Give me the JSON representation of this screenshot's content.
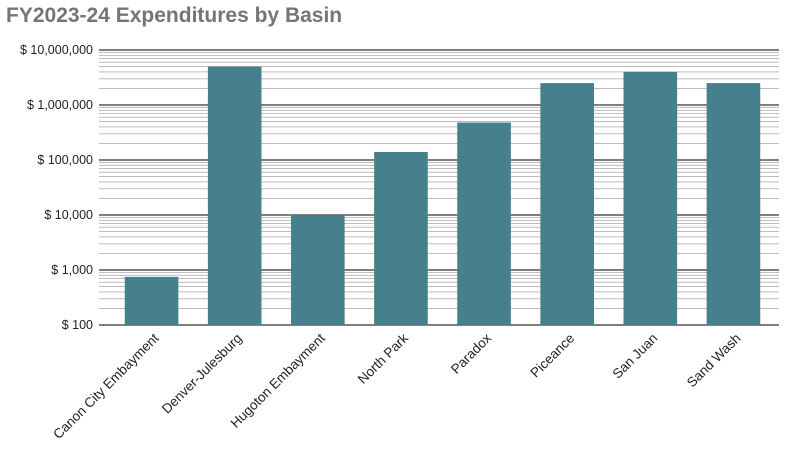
{
  "chart_data": {
    "type": "bar",
    "title": "FY2023-24 Expenditures by Basin",
    "xlabel": "",
    "ylabel": "",
    "yscale": "log",
    "ylim": [
      100,
      10000000
    ],
    "yticks": [
      100,
      1000,
      10000,
      100000,
      1000000,
      10000000
    ],
    "ytick_labels": [
      "$ 100",
      "$ 1,000",
      "$ 10,000",
      "$ 100,000",
      "$ 1,000,000",
      "$ 10,000,000"
    ],
    "grid": true,
    "legend": "none",
    "categories": [
      "Canon City Embayment",
      "Denver-Julesburg",
      "Hugoton Embayment",
      "North Park",
      "Paradox",
      "Piceance",
      "San Juan",
      "Sand Wash"
    ],
    "values": [
      750,
      5000000,
      10000,
      140000,
      480000,
      2500000,
      4000000,
      2500000
    ],
    "bar_color": "#46808c"
  }
}
